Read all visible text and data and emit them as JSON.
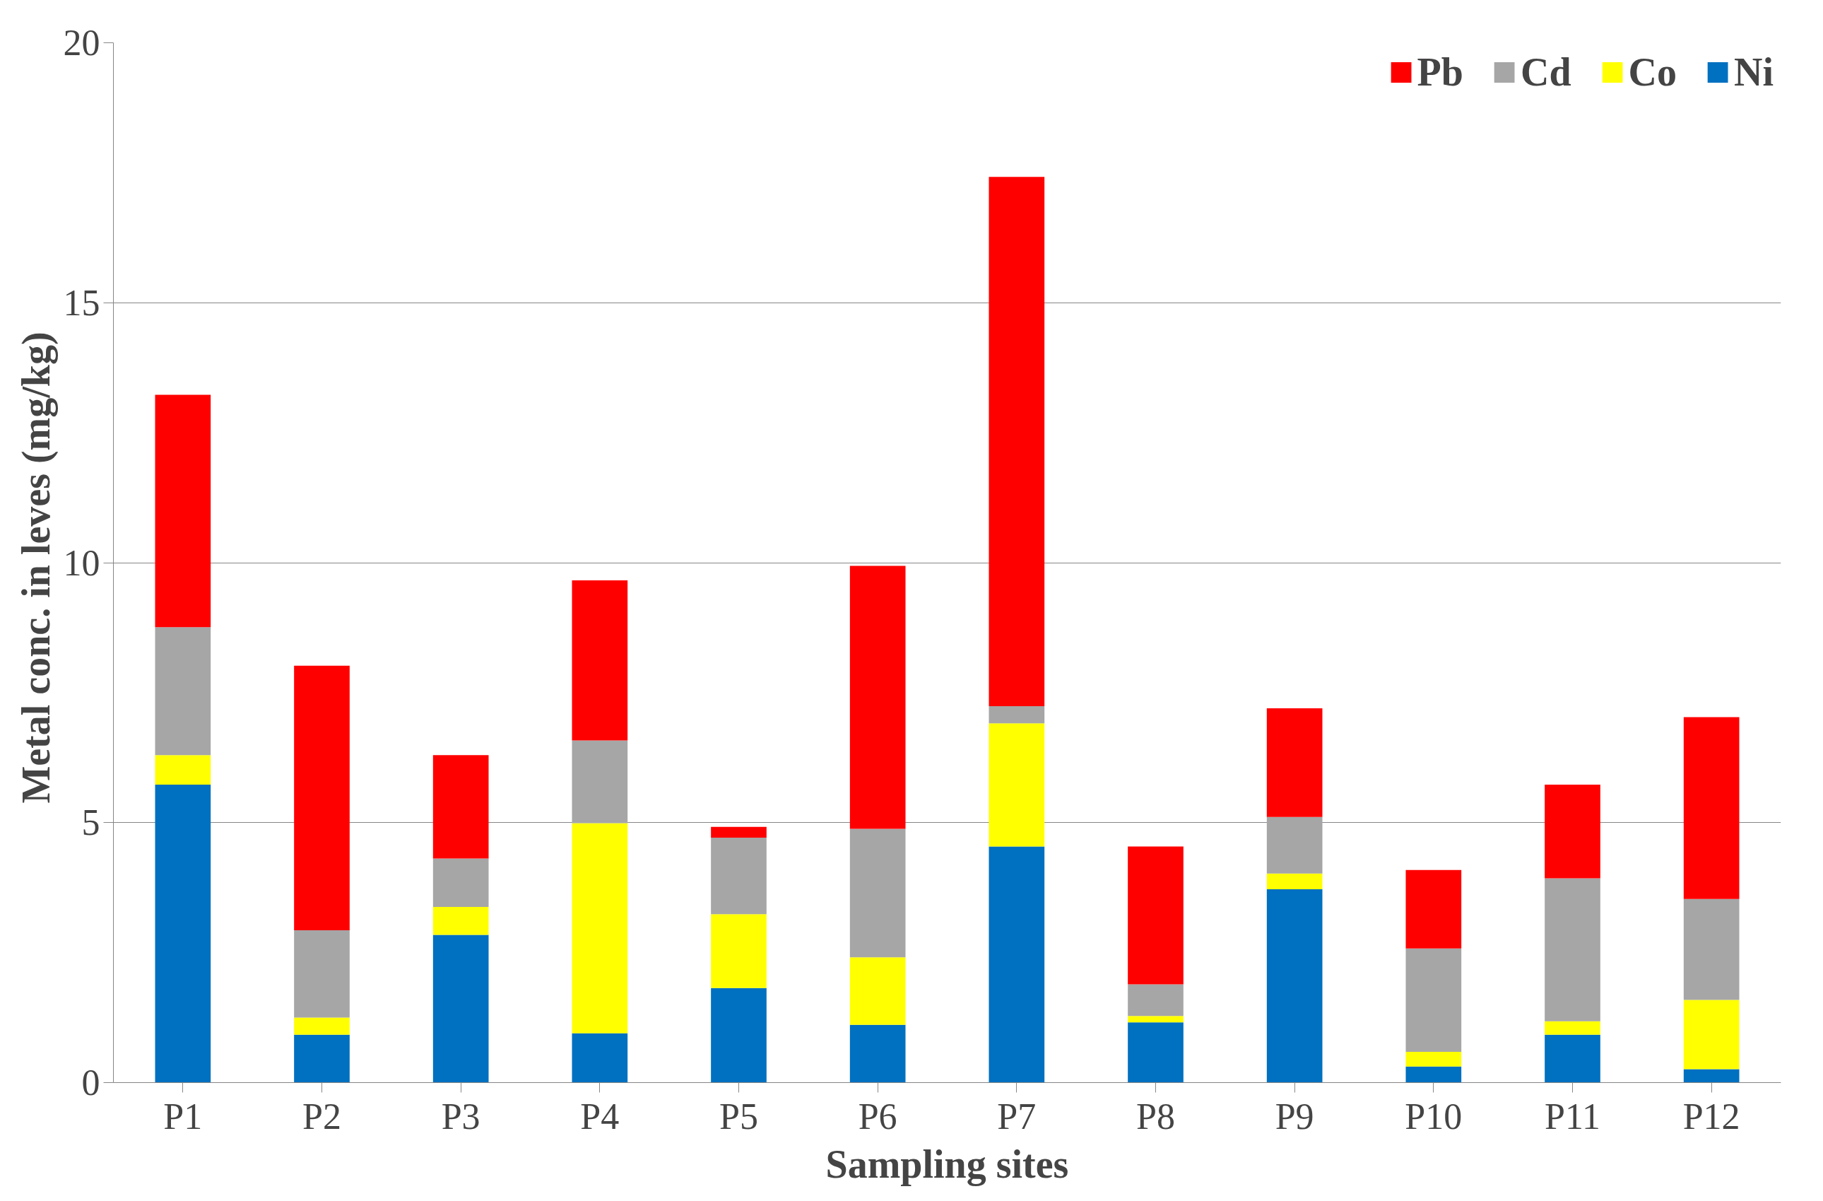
{
  "chart_data": {
    "type": "bar",
    "stacked": true,
    "xlabel": "Sampling sites",
    "ylabel": "Metal conc. in leves  (mg/kg)",
    "categories": [
      "P1",
      "P2",
      "P3",
      "P4",
      "P5",
      "P6",
      "P7",
      "P8",
      "P9",
      "P10",
      "P11",
      "P12"
    ],
    "series": [
      {
        "name": "Ni",
        "color": "#0070c0",
        "values": [
          5.73,
          0.92,
          2.84,
          0.95,
          1.82,
          1.11,
          4.54,
          1.16,
          3.72,
          0.31,
          0.92,
          0.26
        ]
      },
      {
        "name": "Co",
        "color": "#ffff00",
        "values": [
          0.57,
          0.33,
          0.54,
          4.04,
          1.42,
          1.3,
          2.37,
          0.12,
          0.3,
          0.28,
          0.26,
          1.33
        ]
      },
      {
        "name": "Cd",
        "color": "#a6a6a6",
        "values": [
          2.46,
          1.68,
          0.93,
          1.59,
          1.47,
          2.47,
          0.33,
          0.61,
          1.09,
          1.99,
          2.75,
          1.94
        ]
      },
      {
        "name": "Pb",
        "color": "#ff0000",
        "values": [
          4.47,
          5.09,
          1.99,
          3.08,
          0.21,
          5.06,
          10.18,
          2.65,
          2.09,
          1.51,
          1.8,
          3.5
        ]
      }
    ],
    "ylim": [
      0,
      20
    ],
    "yticks": [
      0,
      5,
      10,
      15,
      20
    ],
    "grid": "y",
    "legend": "top right"
  }
}
